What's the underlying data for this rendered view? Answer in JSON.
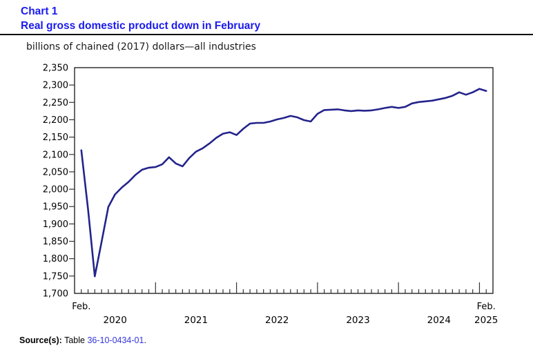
{
  "header": {
    "chart_label": "Chart 1",
    "title": "Real gross domestic product down in February"
  },
  "subtitle": "billions of chained (2017) dollars—all industries",
  "source": {
    "label": "Source(s):",
    "text_before_link": " Table ",
    "link_text": "36-10-0434-01",
    "text_after_link": "."
  },
  "colors": {
    "title_blue": "#1a1aee",
    "series_line": "#23238c",
    "link_blue": "#3434dd",
    "axis": "#333333"
  },
  "chart_data": {
    "type": "line",
    "title": "Real gross domestic product down in February",
    "unit_label": "billions of chained (2017) dollars—all industries",
    "series_name": "Real gross domestic product, all industries",
    "months": [
      "2020-02",
      "2020-03",
      "2020-04",
      "2020-05",
      "2020-06",
      "2020-07",
      "2020-08",
      "2020-09",
      "2020-10",
      "2020-11",
      "2020-12",
      "2021-01",
      "2021-02",
      "2021-03",
      "2021-04",
      "2021-05",
      "2021-06",
      "2021-07",
      "2021-08",
      "2021-09",
      "2021-10",
      "2021-11",
      "2021-12",
      "2022-01",
      "2022-02",
      "2022-03",
      "2022-04",
      "2022-05",
      "2022-06",
      "2022-07",
      "2022-08",
      "2022-09",
      "2022-10",
      "2022-11",
      "2022-12",
      "2023-01",
      "2023-02",
      "2023-03",
      "2023-04",
      "2023-05",
      "2023-06",
      "2023-07",
      "2023-08",
      "2023-09",
      "2023-10",
      "2023-11",
      "2023-12",
      "2024-01",
      "2024-02",
      "2024-03",
      "2024-04",
      "2024-05",
      "2024-06",
      "2024-07",
      "2024-08",
      "2024-09",
      "2024-10",
      "2024-11",
      "2024-12",
      "2025-01",
      "2025-02"
    ],
    "values": [
      2112,
      1943,
      1749,
      1848,
      1949,
      1985,
      2005,
      2021,
      2041,
      2056,
      2062,
      2064,
      2072,
      2092,
      2074,
      2066,
      2090,
      2108,
      2118,
      2132,
      2148,
      2160,
      2164,
      2156,
      2174,
      2189,
      2191,
      2191,
      2195,
      2201,
      2205,
      2211,
      2207,
      2199,
      2195,
      2217,
      2228,
      2229,
      2230,
      2227,
      2225,
      2227,
      2226,
      2227,
      2230,
      2234,
      2237,
      2234,
      2237,
      2247,
      2251,
      2253,
      2255,
      2259,
      2263,
      2269,
      2279,
      2272,
      2279,
      2289,
      2283
    ],
    "ylim": [
      1700,
      2350
    ],
    "ytick_step": 50,
    "x_domain_months": [
      "2020-01",
      "2025-03"
    ],
    "x_axis": {
      "left_label": "Feb.",
      "right_label": "Feb.",
      "year_labels": [
        "2020",
        "2021",
        "2022",
        "2023",
        "2024",
        "2025"
      ]
    },
    "grid": false,
    "legend": "none"
  }
}
